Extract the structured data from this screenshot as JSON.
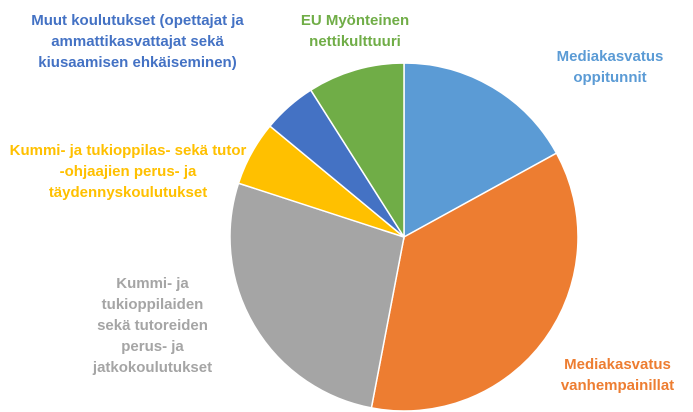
{
  "chart_data": {
    "type": "pie",
    "categories": [
      "Mediakasvatus oppitunnit",
      "Mediakasvatus vanhempainillat",
      "Kummi- ja tukioppilaiden sekä tutoreiden perus- ja jatkokoulutukset",
      "Kummi- ja tukioppilas- sekä tutor -ohjaajien perus- ja täydennyskoulutukset",
      "Muut koulutukset (opettajat ja ammattikasvattajat sekä kiusaamisen ehkäiseminen)",
      "EU Myönteinen nettikulttuuri"
    ],
    "values": [
      17,
      36,
      27,
      6,
      5,
      9
    ],
    "colors": [
      "#5b9bd5",
      "#ed7d31",
      "#a5a5a5",
      "#ffc000",
      "#4472c4",
      "#70ad47"
    ]
  }
}
